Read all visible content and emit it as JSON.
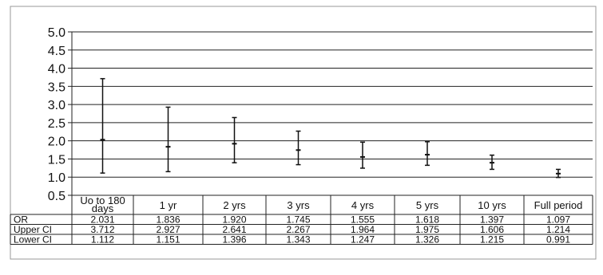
{
  "chart_data": {
    "type": "line",
    "title": "",
    "xlabel": "",
    "ylabel": "",
    "ylim": [
      0.5,
      5.0
    ],
    "yticks": [
      "5.0",
      "4.5",
      "4.0",
      "3.5",
      "3.0",
      "2.5",
      "2.0",
      "1.5",
      "1.0",
      "0.5"
    ],
    "grid": true,
    "legend": "none",
    "categories": [
      "Uo to 180 days",
      "1 yr",
      "2 yrs",
      "3 yrs",
      "4 yrs",
      "5 yrs",
      "10 yrs",
      "Full period"
    ],
    "series": [
      {
        "name": "OR",
        "values": [
          2.031,
          1.836,
          1.92,
          1.745,
          1.555,
          1.618,
          1.397,
          1.097
        ]
      },
      {
        "name": "Upper CI",
        "values": [
          3.712,
          2.927,
          2.641,
          2.267,
          1.964,
          1.975,
          1.606,
          1.214
        ]
      },
      {
        "name": "Lower CI",
        "values": [
          1.112,
          1.151,
          1.396,
          1.343,
          1.247,
          1.326,
          1.215,
          0.991
        ]
      }
    ],
    "table_text": {
      "OR": [
        "2.031",
        "1.836",
        "1.920",
        "1.745",
        "1.555",
        "1.618",
        "1.397",
        "1.097"
      ],
      "Upper CI": [
        "3.712",
        "2.927",
        "2.641",
        "2.267",
        "1.964",
        "1.975",
        "1.606",
        "1.214"
      ],
      "Lower CI": [
        "1.112",
        "1.151",
        "1.396",
        "1.343",
        "1.247",
        "1.326",
        "1.215",
        "0.991"
      ]
    },
    "colors": {
      "line": "#111111",
      "grid": "#222222",
      "text": "#111111"
    }
  }
}
